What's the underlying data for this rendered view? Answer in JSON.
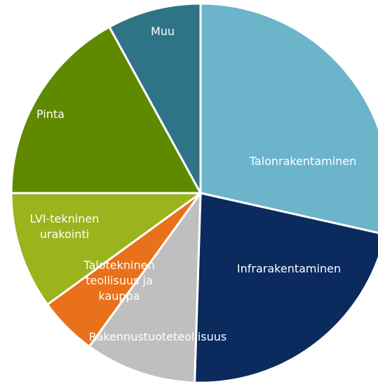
{
  "chart_data": {
    "type": "pie",
    "categories": [
      "Talonrakentaminen",
      "Infrarakentaminen",
      "Rakennustuoteteollisuus",
      "Talotekninen teollisuus ja kauppa",
      "LVI-tekninen urakointi",
      "Pinta",
      "Muu"
    ],
    "values": [
      28.5,
      22,
      9.5,
      5,
      10,
      17,
      8
    ],
    "colors": [
      "#6cb4ca",
      "#0b2a5e",
      "#bfbfbf",
      "#e8711a",
      "#9bb31c",
      "#5f8a00",
      "#2f7387"
    ]
  }
}
